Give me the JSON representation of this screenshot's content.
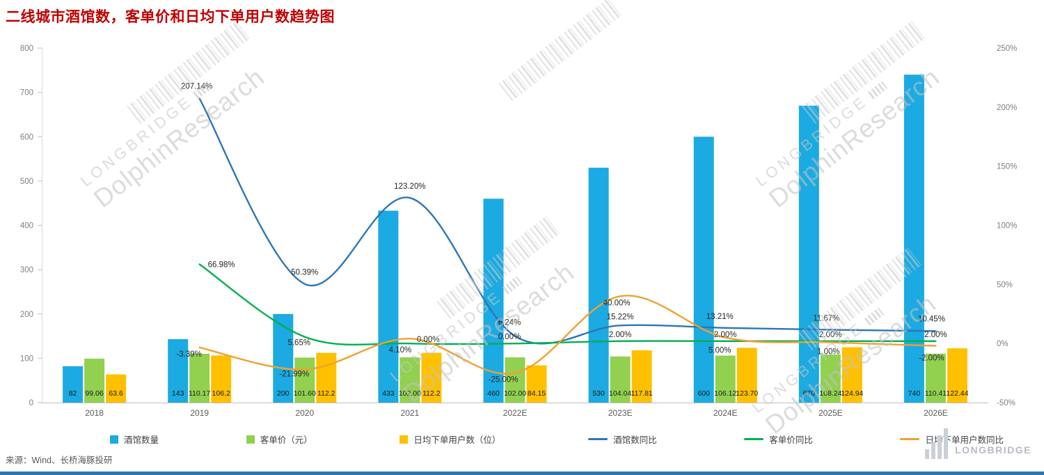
{
  "page": {
    "title": "二线城市酒馆数，客单价和日均下单用户数趋势图",
    "source_note": "来源：Wind、长桥海豚投研",
    "brand_text": "LONGBRIDGE"
  },
  "watermark": {
    "line1": "LONGBRIDGE",
    "line2": "DolphinResearch"
  },
  "colors": {
    "title": "#C00000",
    "bar_taverns": "#1BAAE1",
    "bar_price": "#92D050",
    "bar_users": "#FFC000",
    "line_taverns_yoy": "#2E75B6",
    "line_price_yoy": "#00B050",
    "line_users_yoy": "#F0A030",
    "axis_text": "#7F7F7F",
    "x_axis_text": "#595959",
    "data_label": "#1A1A1A",
    "pct_label": "#262626",
    "footer_bar": "#2E75B6"
  },
  "chart_data": {
    "type": "combo_bar_line",
    "title": "二线城市酒馆数，客单价和日均下单用户数趋势图",
    "categories": [
      "2018",
      "2019",
      "2020",
      "2021",
      "2022E",
      "2023E",
      "2024E",
      "2025E",
      "2026E"
    ],
    "left_axis": {
      "min": 0,
      "max": 800,
      "step": 100,
      "ticks": [
        "0",
        "100",
        "200",
        "300",
        "400",
        "500",
        "600",
        "700",
        "800"
      ]
    },
    "right_axis": {
      "min": -50,
      "max": 250,
      "step": 50,
      "ticks": [
        "-50%",
        "0%",
        "50%",
        "100%",
        "150%",
        "200%",
        "250%"
      ]
    },
    "grid": "off",
    "legend_position": "bottom",
    "bar_series": [
      {
        "key": "taverns",
        "name": "酒馆数量",
        "color_key": "bar_taverns",
        "values": [
          82,
          143,
          200,
          433,
          460,
          530,
          600,
          670,
          740
        ],
        "labels": [
          "82",
          "143",
          "200",
          "433",
          "460",
          "530",
          "600",
          "670",
          "740"
        ]
      },
      {
        "key": "price",
        "name": "客单价（元）",
        "color_key": "bar_price",
        "values": [
          99.06,
          110.17,
          101.6,
          102.0,
          102.0,
          104.04,
          106.12,
          108.24,
          110.41
        ],
        "labels": [
          "99.06",
          "110.17",
          "101.60",
          "102.00",
          "102.00",
          "104.04",
          "106.12",
          "108.24",
          "110.41"
        ]
      },
      {
        "key": "users",
        "name": "日均下单用户数（位）",
        "color_key": "bar_users",
        "values": [
          63.6,
          106.2,
          112.2,
          112.2,
          84.15,
          117.81,
          123.7,
          124.94,
          122.44
        ],
        "labels": [
          "63.6",
          "106.2",
          "112.2",
          "112.2",
          "84.15",
          "117.81",
          "123.70",
          "124.94",
          "122.44"
        ]
      }
    ],
    "line_series": [
      {
        "key": "taverns_yoy",
        "name": "酒馆数同比",
        "color_key": "line_taverns_yoy",
        "values": [
          null,
          207.14,
          50.39,
          123.2,
          6.24,
          15.22,
          13.21,
          11.67,
          10.45
        ],
        "labels": [
          null,
          "207.14%",
          "50.39%",
          "123.20%",
          "6.24%",
          "15.22%",
          "13.21%",
          "11.67%",
          "10.45%"
        ]
      },
      {
        "key": "price_yoy",
        "name": "客单价同比",
        "color_key": "line_price_yoy",
        "values": [
          null,
          66.98,
          5.65,
          0.0,
          0.0,
          2.0,
          2.0,
          2.0,
          2.0
        ],
        "labels": [
          null,
          "66.98%",
          "5.65%",
          "0.00%",
          "0.00%",
          "2.00%",
          "2.00%",
          "2.00%",
          "2.00%"
        ]
      },
      {
        "key": "users_yoy",
        "name": "日均下单用户数同比",
        "color_key": "line_users_yoy",
        "values": [
          null,
          -3.39,
          -21.99,
          4.1,
          -25.0,
          40.0,
          5.0,
          1.0,
          -2.0
        ],
        "labels": [
          null,
          "-3.39%",
          "-21.99%",
          "4.10%",
          "-25.00%",
          "40.00%",
          "5.00%",
          "1.00%",
          "-2.00%"
        ]
      }
    ],
    "legend": [
      "酒馆数量",
      "客单价（元）",
      "日均下单用户数（位）",
      "酒馆数同比",
      "客单价同比",
      "日均下单用户数同比"
    ]
  }
}
